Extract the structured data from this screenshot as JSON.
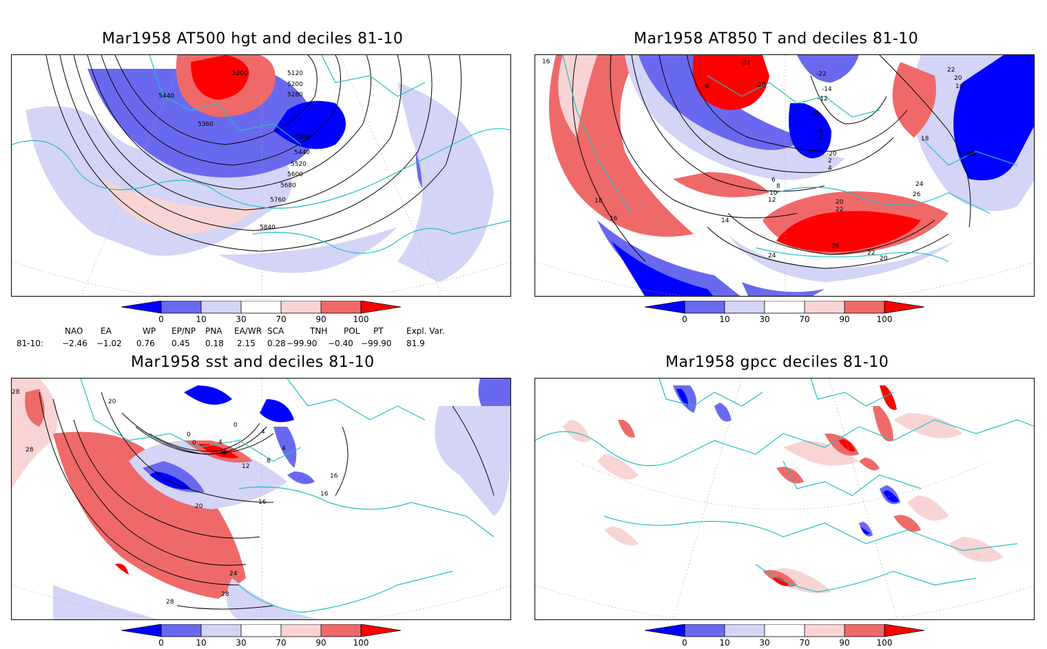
{
  "panels": [
    {
      "id": "p1",
      "title": "Mar1958 AT500 hgt and deciles 81-10",
      "contour_labels": [
        "5120",
        "5200",
        "5200",
        "5280",
        "5360",
        "5360",
        "5440",
        "5440",
        "5520",
        "5600",
        "5680",
        "5760",
        "5840"
      ]
    },
    {
      "id": "p2",
      "title": "Mar1958 AT850 T and deciles 81-10",
      "contour_labels": [
        "16",
        "-24",
        "-22",
        "-20",
        "-6",
        "-14",
        "-12",
        "-10",
        "-8",
        "-6",
        "-20",
        "2",
        "4",
        "6",
        "8",
        "10",
        "12",
        "14",
        "16",
        "16",
        "18",
        "18",
        "16",
        "18",
        "20",
        "22",
        "24",
        "26",
        "20",
        "22",
        "26",
        "24",
        "22",
        "20"
      ]
    },
    {
      "id": "p3",
      "title": "Mar1958 sst and deciles 81-10",
      "contour_labels": [
        "28",
        "20",
        "28",
        "0",
        "0",
        "4",
        "8",
        "12",
        "8",
        "4",
        "4",
        "0",
        "16",
        "16",
        "16",
        "20",
        "24",
        "28",
        "28"
      ]
    },
    {
      "id": "p4",
      "title": "Mar1958 gpcc deciles 81-10",
      "contour_labels": []
    }
  ],
  "colorbar": {
    "ticks": [
      "0",
      "10",
      "30",
      "70",
      "90",
      "100"
    ],
    "colors": {
      "deep_blue": "#0000ff",
      "mid_blue": "#6969f0",
      "light_blue": "#d4d4f7",
      "white": "#ffffff",
      "light_red": "#f9d4d4",
      "mid_red": "#f06969",
      "deep_red": "#ff0000"
    }
  },
  "indices": {
    "headers": [
      "NAO",
      "EA",
      "WP",
      "EP/NP",
      "PNA",
      "EA/WR",
      "SCA",
      "TNH",
      "POL",
      "PT",
      "Expl. Var."
    ],
    "row_label": "81-10:",
    "values": [
      "−2.46",
      "−1.02",
      "0.76",
      "0.45",
      "0.18",
      "2.15",
      "0.28",
      "−99.90",
      "−0.40",
      "−99.90",
      "81.9"
    ]
  },
  "map_colors": {
    "coast": "#20c0c0",
    "contour": "#000000",
    "grid": "#aaaaaa"
  }
}
